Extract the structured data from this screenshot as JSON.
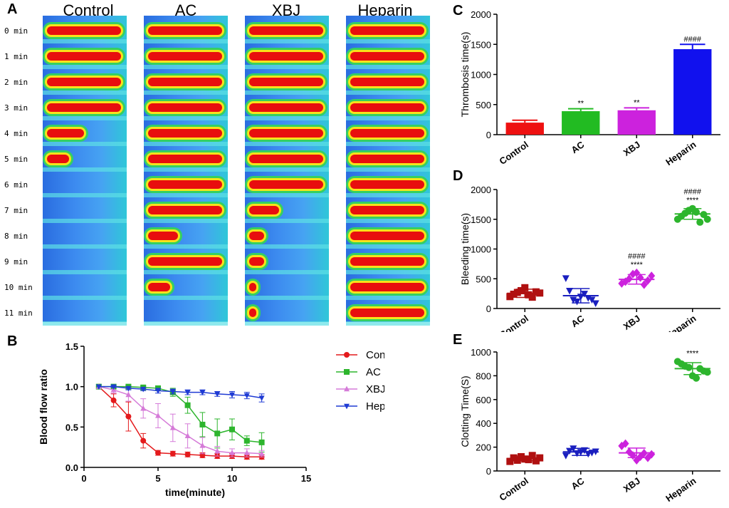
{
  "panel_labels": {
    "a": "A",
    "b": "B",
    "c": "C",
    "d": "D",
    "e": "E"
  },
  "panel_a": {
    "groups": [
      "Control",
      "AC",
      "XBJ",
      "Heparin"
    ],
    "times": [
      "0 min",
      "1 min",
      "2 min",
      "3 min",
      "4 min",
      "5 min",
      "6 min",
      "7 min",
      "8 min",
      "9 min",
      "10 min",
      "11 min"
    ]
  },
  "chart_data": [
    {
      "id": "B",
      "type": "line",
      "xlabel": "time(minute)",
      "ylabel": "Blood flow ratio",
      "xlim": [
        0,
        15
      ],
      "ylim": [
        0,
        1.5
      ],
      "xticks": [
        0,
        5,
        10,
        15
      ],
      "yticks": [
        0.0,
        0.5,
        1.0,
        1.5
      ],
      "x": [
        1,
        2,
        3,
        4,
        5,
        6,
        7,
        8,
        9,
        10,
        11,
        12
      ],
      "series": [
        {
          "name": "Control",
          "color": "#e41a1c",
          "marker": "circle",
          "values": [
            1.0,
            0.83,
            0.63,
            0.33,
            0.18,
            0.17,
            0.16,
            0.15,
            0.14,
            0.14,
            0.13,
            0.13
          ],
          "errors": [
            0.0,
            0.08,
            0.18,
            0.09,
            0.03,
            0.03,
            0.03,
            0.03,
            0.03,
            0.03,
            0.03,
            0.03
          ]
        },
        {
          "name": "AC",
          "color": "#2db52d",
          "marker": "square",
          "values": [
            1.0,
            1.0,
            1.0,
            0.99,
            0.98,
            0.93,
            0.77,
            0.53,
            0.42,
            0.47,
            0.33,
            0.31
          ],
          "errors": [
            0.0,
            0.01,
            0.01,
            0.02,
            0.03,
            0.05,
            0.1,
            0.15,
            0.18,
            0.13,
            0.06,
            0.12
          ]
        },
        {
          "name": "XBJ",
          "color": "#d57bd8",
          "marker": "triangle-up",
          "values": [
            1.0,
            0.96,
            0.9,
            0.73,
            0.64,
            0.49,
            0.39,
            0.27,
            0.2,
            0.18,
            0.18,
            0.17
          ],
          "errors": [
            0.0,
            0.04,
            0.08,
            0.12,
            0.15,
            0.17,
            0.15,
            0.1,
            0.06,
            0.05,
            0.05,
            0.04
          ]
        },
        {
          "name": "Heparin",
          "color": "#1f3bd4",
          "marker": "triangle-down",
          "values": [
            1.0,
            1.0,
            0.98,
            0.97,
            0.95,
            0.94,
            0.93,
            0.93,
            0.91,
            0.9,
            0.89,
            0.86
          ],
          "errors": [
            0.0,
            0.01,
            0.02,
            0.02,
            0.03,
            0.03,
            0.03,
            0.03,
            0.03,
            0.04,
            0.04,
            0.05
          ]
        }
      ]
    },
    {
      "id": "C",
      "type": "bar",
      "ylabel": "Thrombosis time(s)",
      "ylim": [
        0,
        2000
      ],
      "yticks": [
        0,
        500,
        1000,
        1500,
        2000
      ],
      "categories": [
        "Control",
        "AC",
        "XBJ",
        "Heparin"
      ],
      "values": [
        200,
        390,
        405,
        1420
      ],
      "errors": [
        40,
        40,
        40,
        80
      ],
      "colors": [
        "#ee1111",
        "#22bb22",
        "#cc22dd",
        "#1111ee"
      ],
      "annotations": [
        "",
        "**",
        "**",
        "####"
      ]
    },
    {
      "id": "D",
      "type": "scatter",
      "ylabel": "Bleeding time(s)",
      "ylim": [
        0,
        2000
      ],
      "yticks": [
        0,
        500,
        1000,
        1500,
        2000
      ],
      "categories": [
        "Control",
        "AC",
        "XBJ",
        "Heparin"
      ],
      "colors": [
        "#b01010",
        "#1a1fbf",
        "#cc22dd",
        "#2db52d"
      ],
      "markers": [
        "square",
        "triangle-down",
        "diamond",
        "circle"
      ],
      "means": [
        255,
        215,
        490,
        1590
      ],
      "sds": [
        70,
        120,
        80,
        90
      ],
      "points": [
        [
          200,
          240,
          270,
          300,
          350,
          230,
          190,
          280,
          260
        ],
        [
          510,
          300,
          150,
          120,
          200,
          250,
          180,
          150,
          90
        ],
        [
          420,
          450,
          500,
          580,
          600,
          520,
          400,
          470,
          550
        ],
        [
          1500,
          1550,
          1600,
          1650,
          1680,
          1620,
          1450,
          1580,
          1500
        ]
      ],
      "annotations": [
        "",
        "",
        "####\n****",
        "####\n****"
      ]
    },
    {
      "id": "E",
      "type": "scatter",
      "ylabel": "Clotting Time(S)",
      "ylim": [
        0,
        1000
      ],
      "yticks": [
        0,
        200,
        400,
        600,
        800,
        1000
      ],
      "categories": [
        "Control",
        "AC",
        "XBJ",
        "Heparin"
      ],
      "colors": [
        "#b01010",
        "#1a1fbf",
        "#cc22dd",
        "#2db52d"
      ],
      "markers": [
        "square",
        "triangle-down",
        "diamond",
        "circle"
      ],
      "means": [
        105,
        160,
        152,
        860
      ],
      "sds": [
        20,
        30,
        40,
        50
      ],
      "points": [
        [
          80,
          110,
          90,
          120,
          100,
          95,
          130,
          85,
          110
        ],
        [
          130,
          170,
          190,
          150,
          160,
          175,
          145,
          155,
          165
        ],
        [
          210,
          230,
          160,
          130,
          90,
          120,
          150,
          110,
          140
        ],
        [
          920,
          900,
          880,
          870,
          800,
          780,
          860,
          840,
          830
        ]
      ],
      "annotations": [
        "",
        "",
        "",
        "****"
      ]
    }
  ]
}
